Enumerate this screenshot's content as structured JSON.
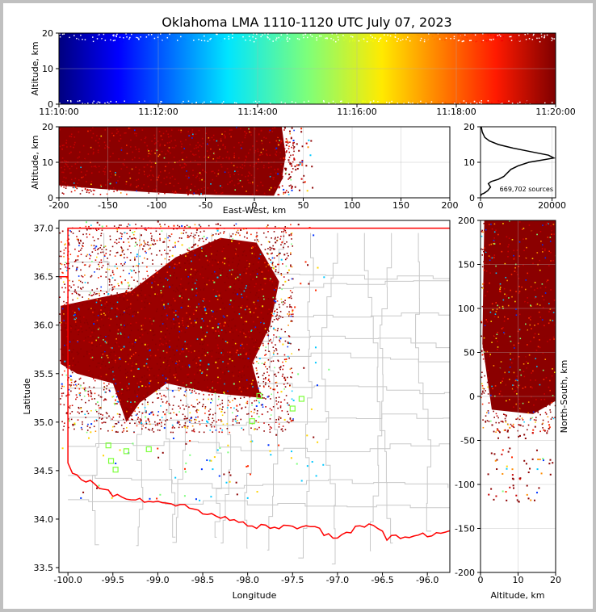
{
  "title": "Oklahoma LMA 1110-1120 UTC July 07, 2023",
  "chart_data": [
    {
      "id": "time-altitude",
      "type": "scatter",
      "ylabel": "Altitude, km",
      "ylim": [
        0,
        20
      ],
      "yticks": [
        "0",
        "10",
        "20"
      ],
      "xlim": [
        "11:10:00",
        "11:20:00"
      ],
      "xticks": [
        "11:10:00",
        "11:12:00",
        "11:14:00",
        "11:16:00",
        "11:18:00",
        "11:20:00"
      ],
      "color_scale": "jet (by time)",
      "grid": true
    },
    {
      "id": "eastwest-altitude",
      "type": "scatter",
      "xlabel": "East-West, km",
      "ylabel": "Altitude, km",
      "xlim": [
        -200,
        200
      ],
      "ylim": [
        0,
        20
      ],
      "xticks": [
        "-200",
        "-150",
        "-100",
        "-50",
        "0",
        "50",
        "100",
        "150",
        "200"
      ],
      "yticks": [
        "0",
        "10",
        "20"
      ],
      "grid": true
    },
    {
      "id": "altitude-histogram",
      "type": "line",
      "xlim": [
        0,
        21000
      ],
      "ylim": [
        0,
        20
      ],
      "xticks": [
        "0",
        "20000"
      ],
      "yticks": [
        "0",
        "10",
        "20"
      ],
      "annotation": "669,702 sources",
      "x": [
        0,
        300,
        1000,
        2000,
        2800,
        2200,
        3000,
        5000,
        6500,
        7500,
        8500,
        10500,
        13500,
        17000,
        20500,
        19000,
        14000,
        9000,
        5000,
        2500,
        1200,
        500,
        200
      ],
      "y": [
        0.5,
        1.0,
        1.3,
        2.0,
        3.0,
        4.0,
        4.6,
        5.2,
        6.0,
        7.0,
        8.0,
        9.0,
        10.0,
        10.6,
        11.2,
        12.0,
        13.0,
        14.0,
        15.0,
        16.0,
        17.0,
        18.5,
        20.0
      ]
    },
    {
      "id": "plan-view",
      "type": "scatter",
      "xlabel": "Longitude",
      "ylabel": "Latitude",
      "xlim": [
        -100.1,
        -95.75
      ],
      "ylim": [
        33.45,
        37.08
      ],
      "xticks": [
        "-100.0",
        "-99.5",
        "-99.0",
        "-98.5",
        "-98.0",
        "-97.5",
        "-97.0",
        "-96.5",
        "-96.0"
      ],
      "yticks": [
        "33.5",
        "34.0",
        "34.5",
        "35.0",
        "35.5",
        "36.0",
        "36.5",
        "37.0"
      ],
      "boundary_color": "#ff0000",
      "county_color": "#c8c8c8"
    },
    {
      "id": "altitude-northsouth",
      "type": "scatter",
      "xlabel": "Altitude, km",
      "ylabel": "North-South, km",
      "xlim": [
        0,
        20
      ],
      "ylim": [
        -200,
        200
      ],
      "xticks": [
        "0",
        "10",
        "20"
      ],
      "yticks": [
        "200",
        "150",
        "100",
        "50",
        "0",
        "-50",
        "-100",
        "-150",
        "-200"
      ],
      "grid": true
    }
  ]
}
